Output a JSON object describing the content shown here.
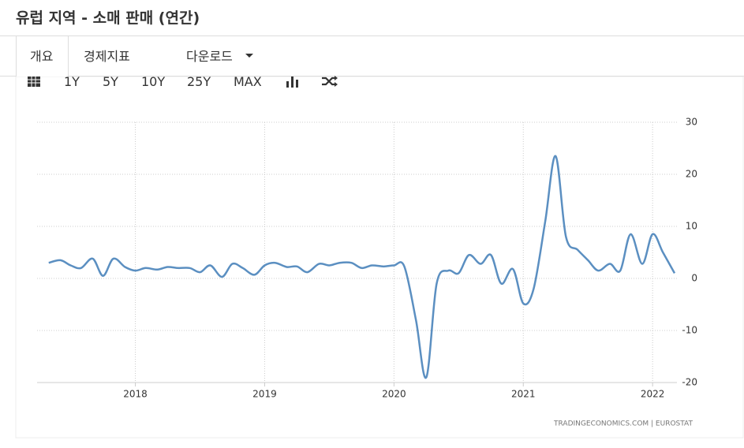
{
  "header": {
    "title": "유럽 지역 - 소매 판매 (연간)"
  },
  "tabs": [
    "개요",
    "경제지표",
    "다운로드"
  ],
  "toolbar": [
    "1Y",
    "5Y",
    "10Y",
    "25Y",
    "MAX"
  ],
  "chart_data": {
    "type": "line",
    "x": [
      2017.33,
      2017.42,
      2017.5,
      2017.58,
      2017.67,
      2017.75,
      2017.83,
      2017.92,
      2018.0,
      2018.08,
      2018.17,
      2018.25,
      2018.33,
      2018.42,
      2018.5,
      2018.58,
      2018.67,
      2018.75,
      2018.83,
      2018.92,
      2019.0,
      2019.08,
      2019.17,
      2019.25,
      2019.33,
      2019.42,
      2019.5,
      2019.58,
      2019.67,
      2019.75,
      2019.83,
      2019.92,
      2020.0,
      2020.08,
      2020.17,
      2020.25,
      2020.33,
      2020.42,
      2020.5,
      2020.58,
      2020.67,
      2020.75,
      2020.83,
      2020.92,
      2021.0,
      2021.08,
      2021.17,
      2021.25,
      2021.33,
      2021.42,
      2021.5,
      2021.58,
      2021.67,
      2021.75,
      2021.83,
      2021.92,
      2022.0,
      2022.08,
      2022.17
    ],
    "series": [
      {
        "color": "#5b8fc1",
        "values": [
          3,
          3.5,
          2.5,
          2,
          3.8,
          0.5,
          3.8,
          2.2,
          1.5,
          2,
          1.7,
          2.2,
          2,
          2,
          1.2,
          2.5,
          0.3,
          2.8,
          2,
          0.7,
          2.5,
          3,
          2.2,
          2.3,
          1.2,
          2.8,
          2.5,
          3,
          3,
          2,
          2.5,
          2.3,
          2.5,
          2.3,
          -8,
          -19,
          -1,
          1.5,
          1,
          4.5,
          2.8,
          4.5,
          -1,
          1.8,
          -4.8,
          -2,
          11,
          23.5,
          8,
          5.5,
          3.5,
          1.5,
          2.8,
          1.5,
          8.5,
          2.8,
          8.5,
          5,
          1
        ]
      }
    ],
    "xlim": [
      2017.24,
      2022.17
    ],
    "xticks": [
      2018,
      2019,
      2020,
      2021,
      2022
    ],
    "ylim": [
      -20,
      30
    ],
    "yticks": [
      30,
      20,
      10,
      0,
      -10,
      -20
    ],
    "grid": true,
    "source": "TRADINGECONOMICS.COM | EUROSTAT"
  }
}
